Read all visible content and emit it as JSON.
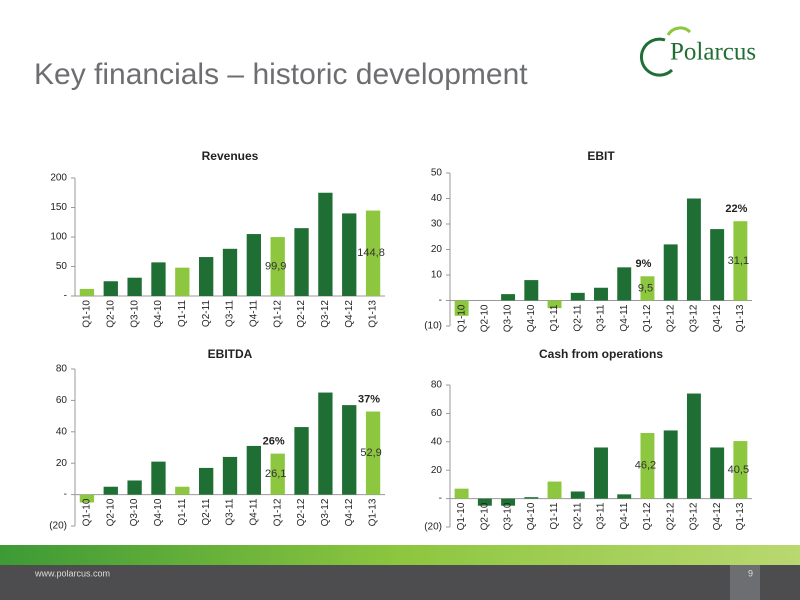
{
  "header": {
    "title": "Key financials – historic development",
    "logo": "Polarcus"
  },
  "footer": {
    "url": "www.polarcus.com",
    "page": "9"
  },
  "chart_data": [
    {
      "type": "bar",
      "title": "Revenues",
      "categories": [
        "Q1-10",
        "Q2-10",
        "Q3-10",
        "Q4-10",
        "Q1-11",
        "Q2-11",
        "Q3-11",
        "Q4-11",
        "Q1-12",
        "Q2-12",
        "Q3-12",
        "Q4-12",
        "Q1-13"
      ],
      "values": [
        12,
        25,
        31,
        57,
        48,
        66,
        80,
        105,
        99.9,
        115,
        175,
        140,
        144.8
      ],
      "value_labels": [
        null,
        null,
        null,
        null,
        null,
        null,
        null,
        null,
        "99,9",
        null,
        null,
        null,
        "144,8"
      ],
      "colors": [
        "#8dc63f",
        "#1f6e34",
        "#1f6e34",
        "#1f6e34",
        "#8dc63f",
        "#1f6e34",
        "#1f6e34",
        "#1f6e34",
        "#8dc63f",
        "#1f6e34",
        "#1f6e34",
        "#1f6e34",
        "#8dc63f"
      ],
      "ylim": [
        0,
        200
      ],
      "yticks": [
        {
          "value": 0,
          "label": "-"
        },
        50,
        100,
        150,
        200
      ]
    },
    {
      "type": "bar",
      "title": "EBIT",
      "categories": [
        "Q1-10",
        "Q2-10",
        "Q3-10",
        "Q4-10",
        "Q1-11",
        "Q2-11",
        "Q3-11",
        "Q4-11",
        "Q1-12",
        "Q2-12",
        "Q3-12",
        "Q4-12",
        "Q1-13"
      ],
      "values": [
        -6,
        0,
        2.5,
        8,
        -3,
        3,
        5,
        13,
        9.5,
        22,
        40,
        28,
        31.1
      ],
      "value_labels": [
        null,
        null,
        null,
        null,
        null,
        null,
        null,
        null,
        "9,5",
        null,
        null,
        null,
        "31,1"
      ],
      "colors": [
        "#8dc63f",
        "#1f6e34",
        "#1f6e34",
        "#1f6e34",
        "#8dc63f",
        "#1f6e34",
        "#1f6e34",
        "#1f6e34",
        "#8dc63f",
        "#1f6e34",
        "#1f6e34",
        "#1f6e34",
        "#8dc63f"
      ],
      "annotations": [
        {
          "category": "Q1-12",
          "text": "9%"
        },
        {
          "category": "Q1-13",
          "text": "22%"
        }
      ],
      "ylim": [
        -10,
        50
      ],
      "yticks": [
        {
          "value": -10,
          "label": "(10)"
        },
        {
          "value": 0,
          "label": "-"
        },
        10,
        20,
        30,
        40,
        50
      ]
    },
    {
      "type": "bar",
      "title": "EBITDA",
      "categories": [
        "Q1-10",
        "Q2-10",
        "Q3-10",
        "Q4-10",
        "Q1-11",
        "Q2-11",
        "Q3-11",
        "Q4-11",
        "Q1-12",
        "Q2-12",
        "Q3-12",
        "Q4-12",
        "Q1-13"
      ],
      "values": [
        -5,
        5,
        9,
        21,
        5,
        17,
        24,
        31,
        26.1,
        43,
        65,
        57,
        52.9
      ],
      "value_labels": [
        null,
        null,
        null,
        null,
        null,
        null,
        null,
        null,
        "26,1",
        null,
        null,
        null,
        "52,9"
      ],
      "colors": [
        "#8dc63f",
        "#1f6e34",
        "#1f6e34",
        "#1f6e34",
        "#8dc63f",
        "#1f6e34",
        "#1f6e34",
        "#1f6e34",
        "#8dc63f",
        "#1f6e34",
        "#1f6e34",
        "#1f6e34",
        "#8dc63f"
      ],
      "annotations": [
        {
          "category": "Q1-12",
          "text": "26%"
        },
        {
          "category": "Q1-13",
          "text": "37%"
        }
      ],
      "ylim": [
        -20,
        80
      ],
      "yticks": [
        {
          "value": -20,
          "label": "(20)"
        },
        {
          "value": 0,
          "label": "-"
        },
        20,
        40,
        60,
        80
      ]
    },
    {
      "type": "bar",
      "title": "Cash from operations",
      "categories": [
        "Q1-10",
        "Q2-10",
        "Q3-10",
        "Q4-10",
        "Q1-11",
        "Q2-11",
        "Q3-11",
        "Q4-11",
        "Q1-12",
        "Q2-12",
        "Q3-12",
        "Q4-12",
        "Q1-13"
      ],
      "values": [
        7,
        -5,
        -5,
        1,
        12,
        5,
        36,
        3,
        46.2,
        48,
        74,
        36,
        40.5
      ],
      "value_labels": [
        null,
        null,
        null,
        null,
        null,
        null,
        null,
        null,
        "46,2",
        null,
        null,
        null,
        "40,5"
      ],
      "colors": [
        "#8dc63f",
        "#1f6e34",
        "#1f6e34",
        "#1f6e34",
        "#8dc63f",
        "#1f6e34",
        "#1f6e34",
        "#1f6e34",
        "#8dc63f",
        "#1f6e34",
        "#1f6e34",
        "#1f6e34",
        "#8dc63f"
      ],
      "ylim": [
        -20,
        80
      ],
      "yticks": [
        {
          "value": -20,
          "label": "(20)"
        },
        {
          "value": 0,
          "label": "-"
        },
        20,
        40,
        60,
        80
      ]
    }
  ]
}
